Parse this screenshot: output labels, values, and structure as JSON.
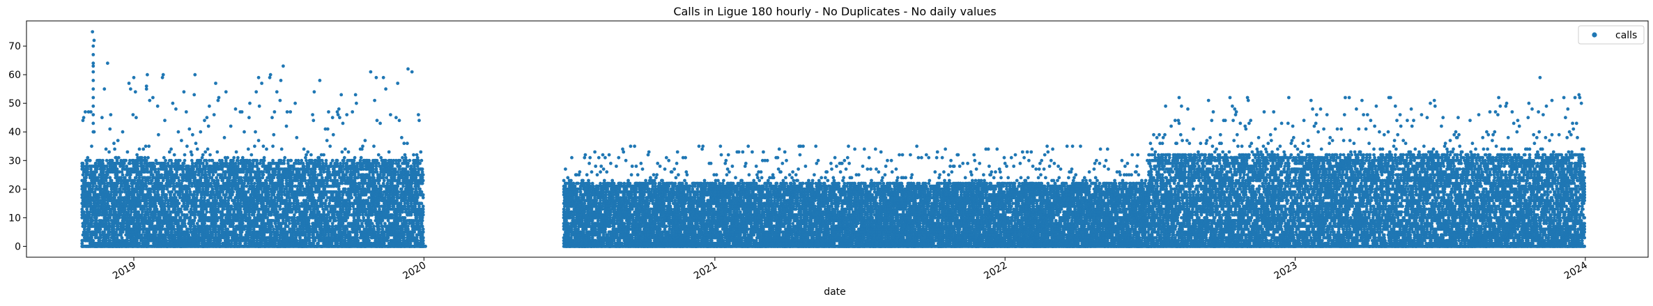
{
  "chart_data": {
    "type": "scatter",
    "title": "Calls in Ligue 180 hourly - No Duplicates - No daily values",
    "xlabel": "date",
    "ylabel": "",
    "x_ticks": [
      "2019",
      "2020",
      "2021",
      "2022",
      "2023",
      "2024"
    ],
    "y_ticks": [
      "0",
      "10",
      "20",
      "30",
      "40",
      "50",
      "60",
      "70"
    ],
    "xlim": [
      "2018-08-19",
      "2024-03-20"
    ],
    "ylim": [
      -3.8,
      78.8
    ],
    "grid": false,
    "legend_position": "top-right",
    "series": [
      {
        "name": "calls",
        "color": "#1f77b4",
        "marker": "circle",
        "note_data": "dense hourly point cloud; segments below describe the envelope of values per period",
        "segments": [
          {
            "start": "2018-10-28",
            "end": "2019-12-31",
            "typical_max": 30,
            "max": 75
          },
          {
            "start": "2020-06-25",
            "end": "2022-07-01",
            "typical_max": 22,
            "max": 40
          },
          {
            "start": "2022-07-01",
            "end": "2023-12-31",
            "typical_max": 32,
            "max": 59
          }
        ],
        "peaks": [
          {
            "x": "2018-11-10",
            "y": 75
          },
          {
            "x": "2018-11-12",
            "y": 72
          },
          {
            "x": "2019-01-17",
            "y": 55
          },
          {
            "x": "2019-02-07",
            "y": 60
          },
          {
            "x": "2019-06-07",
            "y": 59
          },
          {
            "x": "2019-04-18",
            "y": 52
          },
          {
            "x": "2022-08-08",
            "y": 52
          },
          {
            "x": "2023-11-05",
            "y": 59
          },
          {
            "x": "2023-12-24",
            "y": 53
          },
          {
            "x": "2023-11-20",
            "y": 51
          }
        ]
      }
    ]
  }
}
